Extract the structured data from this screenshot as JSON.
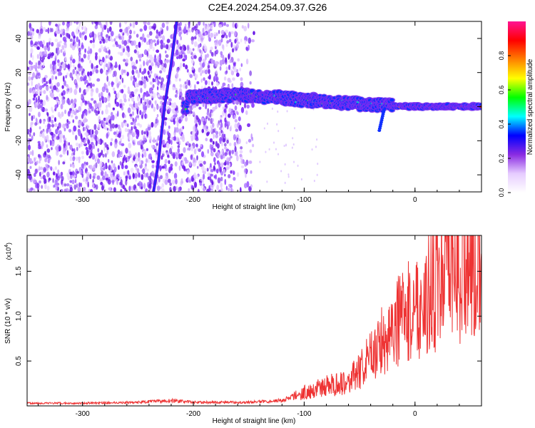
{
  "title": "C2E4.2024.254.09.37.G26",
  "chart_data": [
    {
      "type": "heatmap",
      "xlabel": "Height of straight line (km)",
      "ylabel": "Frequency (Hz)",
      "xlim": [
        -350,
        60
      ],
      "ylim": [
        -50,
        50
      ],
      "x_ticks": [
        -300,
        -200,
        -100,
        0
      ],
      "y_ticks": [
        -40,
        -20,
        0,
        20,
        40
      ],
      "colorbar": {
        "label": "Normalized spectral amplitude",
        "range": [
          0.0,
          1.0
        ],
        "ticks": [
          0.0,
          0.2,
          0.4,
          0.6,
          0.8
        ],
        "colors": [
          "#ffffff",
          "#e6ccff",
          "#8a2be2",
          "#0000ff",
          "#00ffff",
          "#00ff00",
          "#ffff00",
          "#ff8000",
          "#ff0000",
          "#ff1493"
        ]
      },
      "features": {
        "noise_region_x": [
          -350,
          -145
        ],
        "doppler_line": [
          [
            -236,
            -50
          ],
          [
            -232,
            -35
          ],
          [
            -226,
            0
          ],
          [
            -220,
            25
          ],
          [
            -215,
            50
          ]
        ],
        "signal_center_freq": [
          [
            -205,
            6
          ],
          [
            -160,
            7
          ],
          [
            -140,
            6
          ],
          [
            -120,
            5
          ],
          [
            -100,
            4
          ],
          [
            -80,
            3
          ],
          [
            -60,
            2
          ],
          [
            -40,
            1
          ],
          [
            -20,
            0.5
          ],
          [
            0,
            0
          ],
          [
            30,
            0
          ],
          [
            60,
            0
          ]
        ]
      },
      "grid": false
    },
    {
      "type": "line",
      "xlabel": "Height of straight line (km)",
      "ylabel": "SNR (10 * v/v)",
      "y_multiplier": "(x10",
      "y_multiplier_exp": "4",
      "y_multiplier_close": ")",
      "xlim": [
        -350,
        60
      ],
      "ylim": [
        0,
        1.9
      ],
      "x_ticks": [
        -300,
        -200,
        -100,
        0
      ],
      "y_ticks": [
        0.5,
        1.0,
        1.5
      ],
      "series": [
        {
          "color": "#ee3333",
          "x": [
            -350,
            -300,
            -250,
            -220,
            -200,
            -150,
            -120,
            -100,
            -80,
            -60,
            -50,
            -40,
            -30,
            -20,
            -10,
            0,
            10,
            20,
            30,
            40,
            50,
            60
          ],
          "y": [
            0.03,
            0.03,
            0.04,
            0.06,
            0.04,
            0.04,
            0.06,
            0.15,
            0.22,
            0.28,
            0.38,
            0.55,
            0.72,
            0.9,
            1.0,
            1.1,
            1.2,
            1.35,
            1.45,
            1.5,
            1.55,
            1.55
          ]
        }
      ],
      "grid": false
    }
  ]
}
